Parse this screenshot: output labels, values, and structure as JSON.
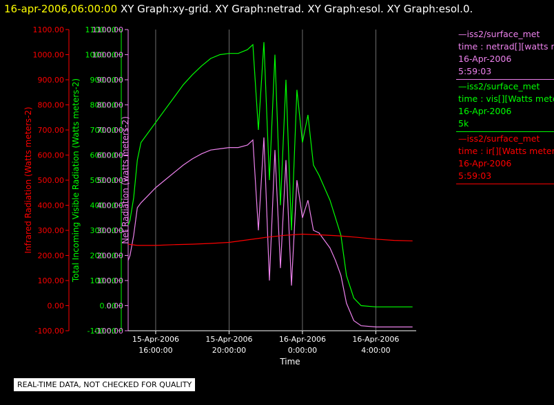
{
  "header": {
    "timestamp": "16-apr-2006,06:00:00",
    "titles": "XY Graph:xy-grid.  XY Graph:netrad.  XY Graph:esol.  XY Graph:esol.0."
  },
  "notice": "REAL-TIME DATA, NOT CHECKED FOR QUALITY",
  "legend": [
    {
      "name": "netrad",
      "color": "#ee82ee",
      "lines": [
        "—iss2/surface_met",
        "time : netrad[][watts met",
        "16-Apr-2006",
        "5:59:03"
      ]
    },
    {
      "name": "vis",
      "color": "#00ff00",
      "lines": [
        "—iss2/surface_met",
        "time : vis[][Watts meter",
        "16-Apr-2006",
        "5k"
      ]
    },
    {
      "name": "ir",
      "color": "#ff0000",
      "lines": [
        "—iss2/surface_met",
        "time : ir[][Watts meters",
        "16-Apr-2006",
        "5:59:03"
      ]
    }
  ],
  "chart_data": {
    "type": "line",
    "xlabel": "Time",
    "x_ticks": [
      {
        "label": [
          "15-Apr-2006",
          "16:00:00"
        ],
        "hours": 16
      },
      {
        "label": [
          "15-Apr-2006",
          "20:00:00"
        ],
        "hours": 20
      },
      {
        "label": [
          "16-Apr-2006",
          "0:00:00"
        ],
        "hours": 24
      },
      {
        "label": [
          "16-Apr-2006",
          "4:00:00"
        ],
        "hours": 28
      }
    ],
    "xlim_hours": [
      14.5,
      30.2
    ],
    "ylim": [
      -100,
      1100
    ],
    "y_ticks": [
      -100,
      0,
      100,
      200,
      300,
      400,
      500,
      600,
      700,
      800,
      900,
      1000,
      1100
    ],
    "y_tick_labels": [
      "-100.00",
      "0.00",
      "100.00",
      "200.00",
      "300.00",
      "400.00",
      "500.00",
      "600.00",
      "700.00",
      "800.00",
      "900.00",
      "1000.00",
      "1100.00"
    ],
    "axes": [
      {
        "name": "ir-axis",
        "label": "Infrared Radiation (Watts meters-2)",
        "color": "#ff0000"
      },
      {
        "name": "vis-axis",
        "label": "Total Incoming Visible Radiation (Watts meters-2)",
        "color": "#00ff00"
      },
      {
        "name": "netrad-axis",
        "label": "Net Radiation (watts meters-2)",
        "color": "#ee82ee"
      }
    ],
    "series": [
      {
        "key": "vis",
        "color": "#00ff00",
        "x": [
          14.5,
          14.6,
          14.8,
          15.0,
          15.2,
          15.6,
          16.0,
          16.5,
          17.0,
          17.5,
          18.0,
          18.5,
          19.0,
          19.5,
          20.0,
          20.5,
          21.0,
          21.3,
          21.6,
          21.9,
          22.2,
          22.5,
          22.8,
          23.1,
          23.4,
          23.7,
          24.0,
          24.3,
          24.6,
          24.9,
          25.2,
          25.5,
          25.8,
          26.1,
          26.4,
          26.8,
          27.2,
          28.0,
          29.0,
          30.0
        ],
        "y": [
          320,
          340,
          430,
          580,
          650,
          690,
          730,
          780,
          830,
          880,
          920,
          955,
          985,
          1000,
          1005,
          1005,
          1020,
          1040,
          700,
          1050,
          500,
          1000,
          400,
          900,
          300,
          860,
          650,
          760,
          560,
          520,
          470,
          420,
          350,
          280,
          120,
          30,
          0,
          -5,
          -5,
          -5
        ]
      },
      {
        "key": "netrad",
        "color": "#ee82ee",
        "x": [
          14.5,
          14.6,
          14.8,
          15.0,
          15.2,
          15.6,
          16.0,
          16.5,
          17.0,
          17.5,
          18.0,
          18.5,
          19.0,
          19.5,
          20.0,
          20.5,
          21.0,
          21.3,
          21.6,
          21.9,
          22.2,
          22.5,
          22.8,
          23.1,
          23.4,
          23.7,
          24.0,
          24.3,
          24.6,
          24.9,
          25.2,
          25.5,
          25.8,
          26.1,
          26.4,
          26.8,
          27.2,
          28.0,
          29.0,
          30.0
        ],
        "y": [
          180,
          200,
          280,
          390,
          410,
          440,
          470,
          500,
          530,
          560,
          585,
          605,
          620,
          625,
          630,
          630,
          640,
          660,
          300,
          670,
          100,
          620,
          150,
          580,
          80,
          500,
          350,
          420,
          300,
          290,
          260,
          230,
          180,
          120,
          10,
          -60,
          -80,
          -85,
          -85,
          -85
        ]
      },
      {
        "key": "ir",
        "color": "#ff0000",
        "x": [
          14.5,
          15.0,
          16.0,
          17.0,
          18.0,
          19.0,
          20.0,
          21.0,
          22.0,
          23.0,
          24.0,
          25.0,
          26.0,
          27.0,
          28.0,
          29.0,
          30.0
        ],
        "y": [
          245,
          240,
          240,
          243,
          245,
          248,
          252,
          262,
          272,
          280,
          285,
          282,
          278,
          272,
          265,
          260,
          258
        ]
      }
    ]
  }
}
